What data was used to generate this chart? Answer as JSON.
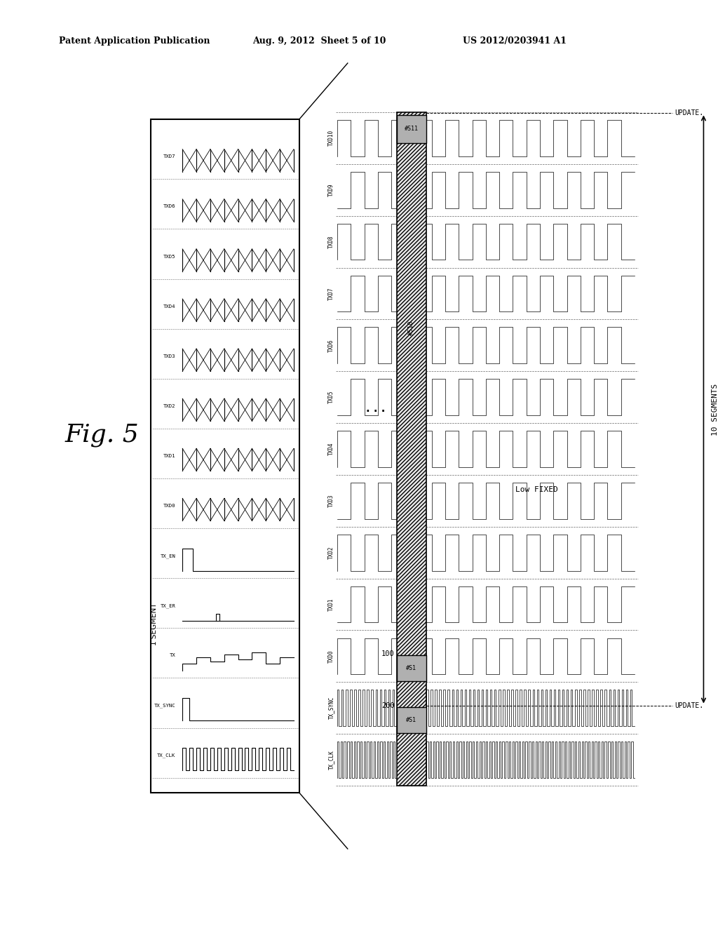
{
  "title": "Fig. 5",
  "header_left": "Patent Application Publication",
  "header_mid": "Aug. 9, 2012  Sheet 5 of 10",
  "header_right": "US 2012/0203941 A1",
  "bg_color": "#ffffff",
  "line_color": "#000000",
  "segment_label": "1 SEGMENT",
  "segments_label": "10 SEGMENTS",
  "low_fixed_label": "Low FIXED",
  "update_label": "UPDATE.",
  "s11_label": "#S11",
  "s10_label": "#S10",
  "s1_label_top": "#S1",
  "s1_label_bot": "#S1",
  "num_100": "100",
  "num_200": "200",
  "sig_names_ordered": [
    "TXD7",
    "TXD6",
    "TXD5",
    "TXD4",
    "TXD3",
    "TXD2",
    "TXD1",
    "TXD0",
    "TX_EN",
    "TX_ER",
    "TX",
    "TX_SYNC",
    "TX_CLK"
  ]
}
